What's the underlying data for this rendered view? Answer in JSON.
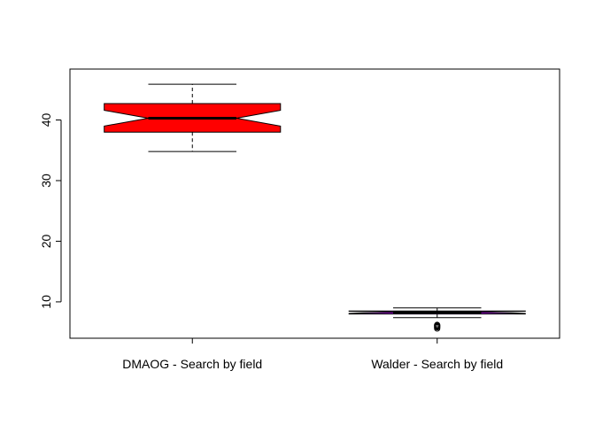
{
  "chart_data": {
    "type": "boxplot",
    "notched": true,
    "categories": [
      "DMAOG - Search by field",
      "Walder - Search by field"
    ],
    "boxes": [
      {
        "label": "DMAOG - Search by field",
        "whisker_low": 34.8,
        "q1": 38.0,
        "median": 40.3,
        "q3": 42.7,
        "whisker_high": 45.9,
        "notch_low": 39.0,
        "notch_high": 41.6,
        "outliers": [],
        "fill": "#ff0000"
      },
      {
        "label": "Walder - Search by field",
        "whisker_low": 7.4,
        "q1": 8.0,
        "median": 8.3,
        "q3": 8.5,
        "whisker_high": 9.0,
        "notch_low": 8.1,
        "notch_high": 8.45,
        "outliers": [
          5.6,
          5.8,
          5.9,
          6.0,
          6.1,
          6.2
        ],
        "fill": "#9900cc"
      }
    ],
    "y_ticks": [
      10,
      20,
      30,
      40
    ],
    "ylim": [
      4,
      48.4
    ],
    "title": "",
    "xlabel": "",
    "ylabel": "",
    "grid": false
  }
}
